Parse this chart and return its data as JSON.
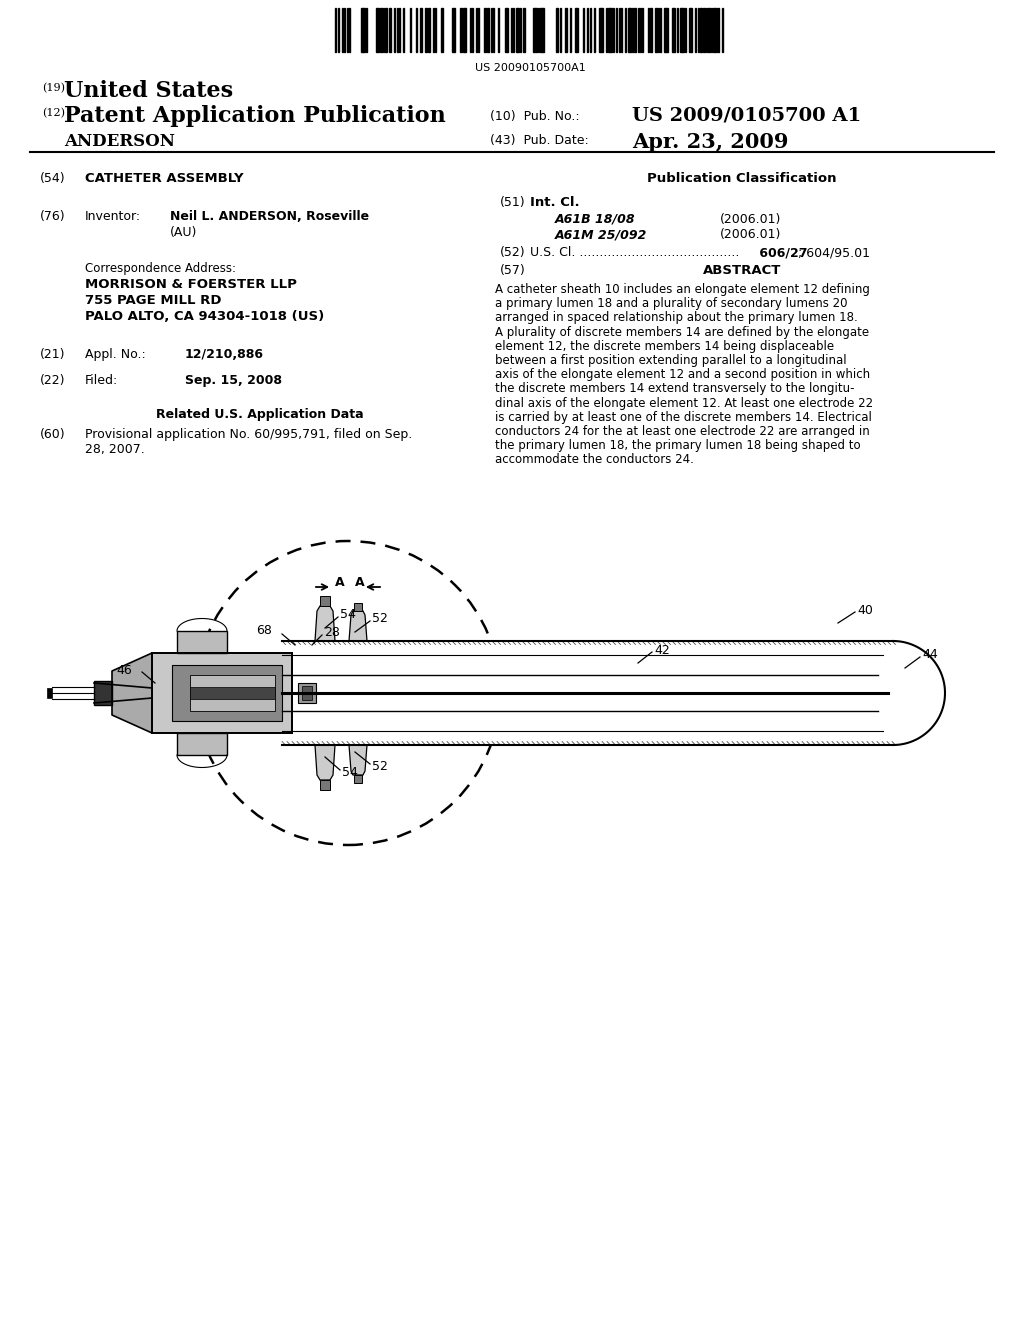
{
  "bg": "#ffffff",
  "barcode_num": "US 20090105700A1",
  "h19": "(19)",
  "h19_val": "United States",
  "h12": "(12)",
  "h12_val": "Patent Application Publication",
  "h_anderson": "ANDERSON",
  "pub_no_lbl": "(10)  Pub. No.:",
  "pub_no_val": "US 2009/0105700 A1",
  "pub_dt_lbl": "(43)  Pub. Date:",
  "pub_dt_val": "Apr. 23, 2009",
  "n54": "(54)",
  "v54": "CATHETER ASSEMBLY",
  "pub_class_hdr": "Publication Classification",
  "n51": "(51)",
  "v51": "Int. Cl.",
  "c1code": "A61B 18/08",
  "c1year": "(2006.01)",
  "c2code": "A61M 25/092",
  "c2year": "(2006.01)",
  "n52": "(52)",
  "v52a": "U.S. Cl. ........................................",
  "v52b": " 606/27",
  "v52c": "; 604/95.01",
  "n57": "(57)",
  "v57": "ABSTRACT",
  "abstract": "A catheter sheath 10 includes an elongate element 12 defining\na primary lumen 18 and a plurality of secondary lumens 20\narranged in spaced relationship about the primary lumen 18.\nA plurality of discrete members 14 are defined by the elongate\nelement 12, the discrete members 14 being displaceable\nbetween a first position extending parallel to a longitudinal\naxis of the elongate element 12 and a second position in which\nthe discrete members 14 extend transversely to the longitu-\ndinal axis of the elongate element 12. At least one electrode 22\nis carried by at least one of the discrete members 14. Electrical\nconductors 24 for the at least one electrode 22 are arranged in\nthe primary lumen 18, the primary lumen 18 being shaped to\naccommodate the conductors 24.",
  "n76": "(76)",
  "v76lbl": "Inventor:",
  "v76name": "Neil L. ANDERSON, Roseville",
  "v76au": "(AU)",
  "corr_hdr": "Correspondence Address:",
  "corr1": "MORRISON & FOERSTER LLP",
  "corr2": "755 PAGE MILL RD",
  "corr3": "PALO ALTO, CA 94304-1018 (US)",
  "n21": "(21)",
  "v21lbl": "Appl. No.:",
  "v21val": "12/210,886",
  "n22": "(22)",
  "v22lbl": "Filed:",
  "v22val": "Sep. 15, 2008",
  "related_hdr": "Related U.S. Application Data",
  "n60": "(60)",
  "v60a": "Provisional application No. 60/995,791, filed on Sep.",
  "v60b": "28, 2007."
}
